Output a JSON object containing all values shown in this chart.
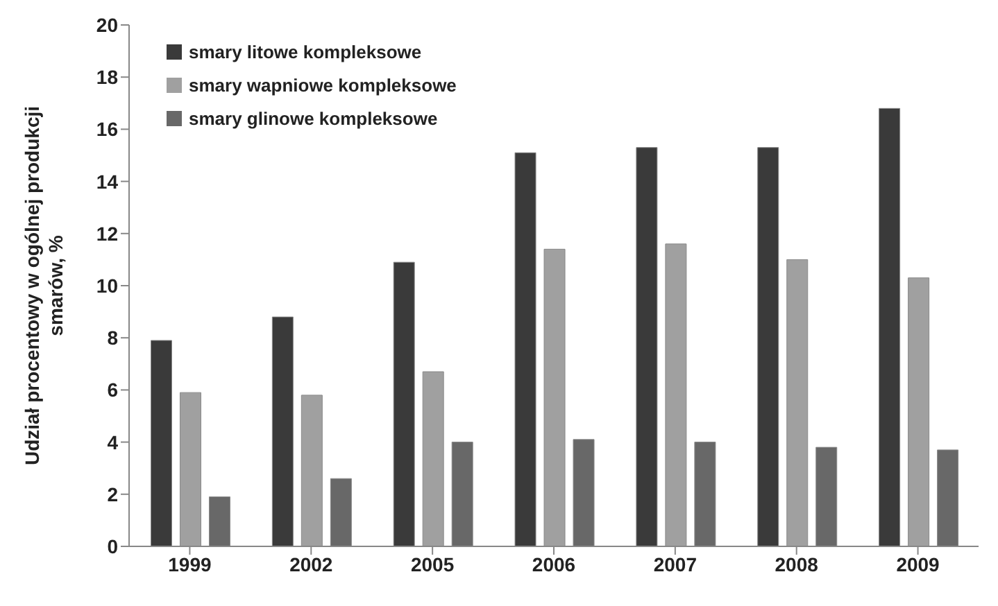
{
  "chart_data": {
    "type": "bar",
    "ylabel": "Udział procentowy w ogólnej produkcji smarów, %",
    "categories": [
      "1999",
      "2002",
      "2005",
      "2006",
      "2007",
      "2008",
      "2009"
    ],
    "series": [
      {
        "name": "smary litowe kompleksowe",
        "color": "#3a3a3a",
        "values": [
          7.9,
          8.8,
          10.9,
          15.1,
          15.3,
          15.3,
          16.8
        ]
      },
      {
        "name": "smary wapniowe kompleksowe",
        "color": "#a0a0a0",
        "values": [
          5.9,
          5.8,
          6.7,
          11.4,
          11.6,
          11.0,
          10.3
        ]
      },
      {
        "name": "smary glinowe kompleksowe",
        "color": "#686868",
        "values": [
          1.9,
          2.6,
          4.0,
          4.1,
          4.0,
          3.8,
          3.7
        ]
      }
    ],
    "ylim": [
      0,
      20
    ],
    "yticks": [
      0,
      2,
      4,
      6,
      8,
      10,
      12,
      14,
      16,
      18,
      20
    ],
    "grid": false,
    "legend": "top left"
  }
}
